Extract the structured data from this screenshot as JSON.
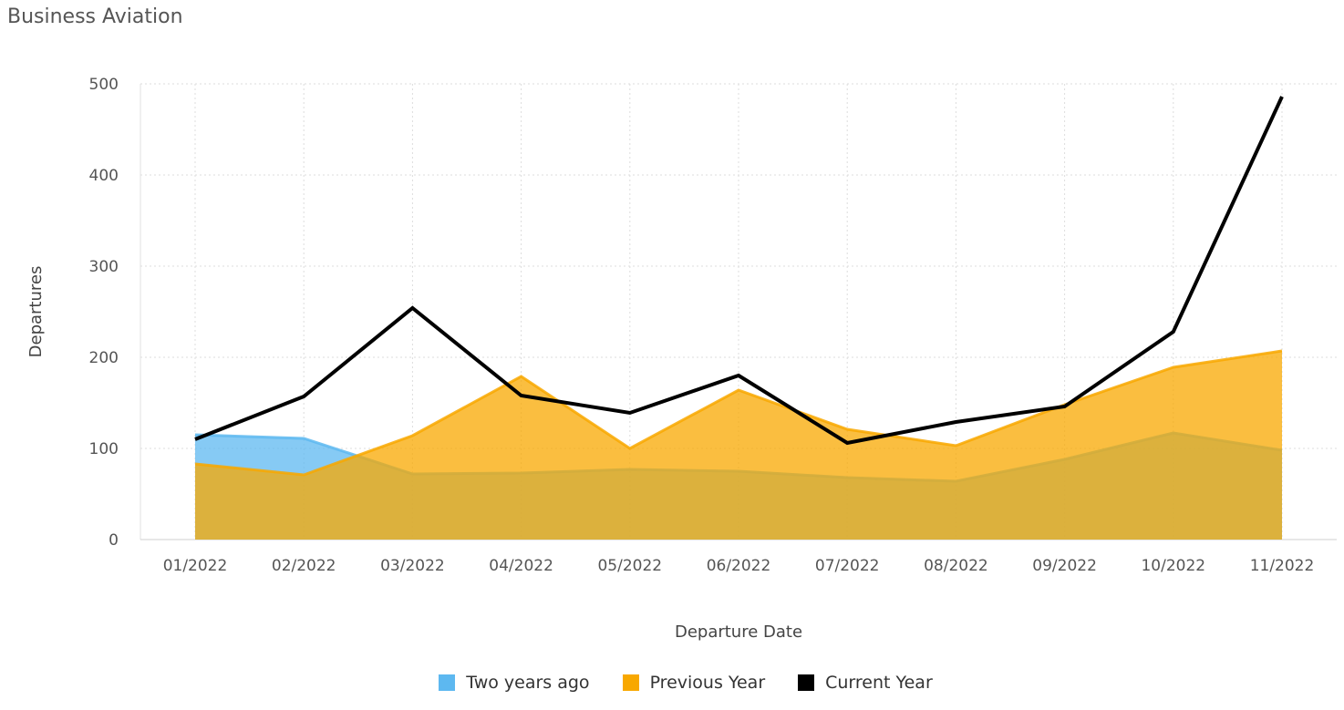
{
  "title": "Business Aviation",
  "chart_data": {
    "type": "area",
    "categories": [
      "01/2022",
      "02/2022",
      "03/2022",
      "04/2022",
      "05/2022",
      "06/2022",
      "07/2022",
      "08/2022",
      "09/2022",
      "10/2022",
      "11/2022"
    ],
    "xlabel": "Departure Date",
    "ylabel": "Departures",
    "ylim": [
      0,
      500
    ],
    "yticks": [
      0,
      100,
      200,
      300,
      400,
      500
    ],
    "grid": true,
    "legend_position": "bottom",
    "series": [
      {
        "name": "Two years ago",
        "type": "area",
        "color": "#5db8f0",
        "values": [
          115,
          111,
          72,
          73,
          77,
          75,
          68,
          64,
          88,
          117,
          98
        ]
      },
      {
        "name": "Previous Year",
        "type": "area",
        "color": "#f8a800",
        "values": [
          83,
          71,
          114,
          179,
          100,
          164,
          121,
          103,
          148,
          189,
          207
        ]
      },
      {
        "name": "Current Year",
        "type": "line",
        "color": "#000000",
        "values": [
          110,
          157,
          254,
          158,
          139,
          180,
          106,
          129,
          146,
          228,
          486
        ]
      }
    ]
  }
}
